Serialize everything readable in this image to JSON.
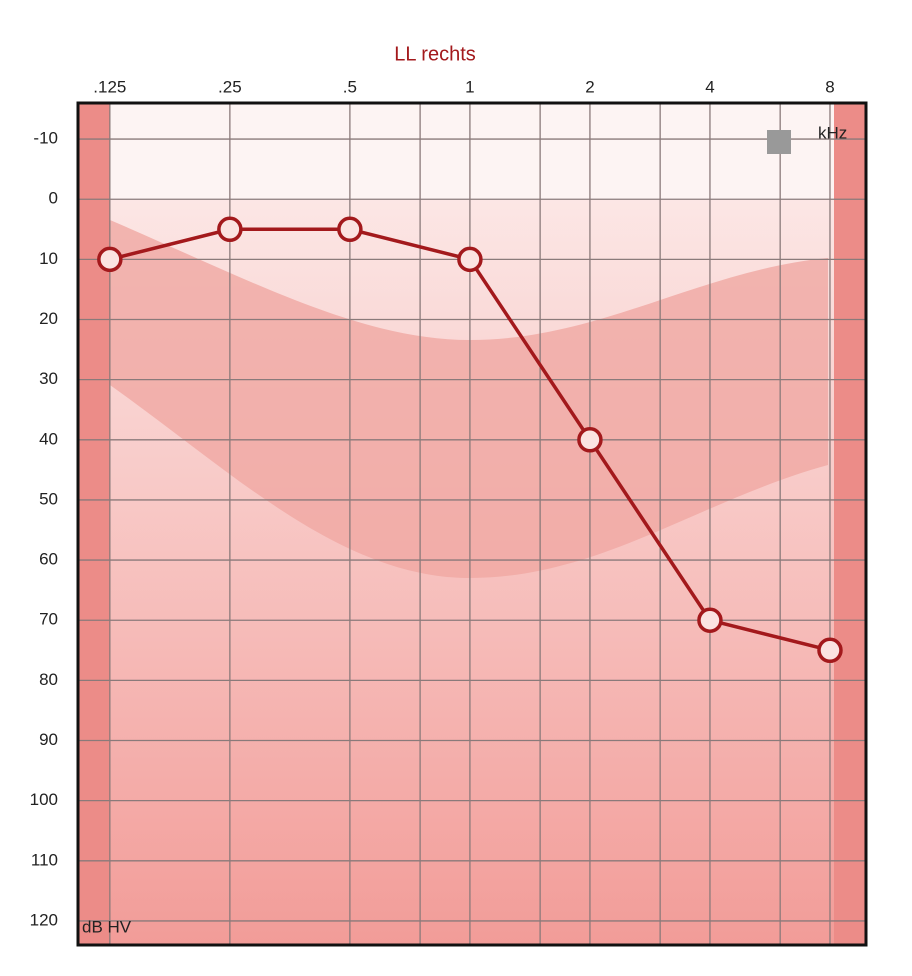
{
  "chart_data": {
    "type": "line",
    "title": "LL rechts",
    "xlabel": "kHz",
    "ylabel": "dB HV",
    "x": [
      0.125,
      0.25,
      0.5,
      1,
      2,
      4,
      8
    ],
    "series": [
      {
        "color": "#a3191c",
        "values": [
          10,
          5,
          5,
          10,
          40,
          70,
          75
        ]
      }
    ],
    "xlim": [
      0.104,
      9.85
    ],
    "xscale": "log",
    "xticks": [
      {
        "value": 0.125,
        "label": ".125"
      },
      {
        "value": 0.25,
        "label": ".25"
      },
      {
        "value": 0.5,
        "label": ".5"
      },
      1,
      2,
      4,
      8
    ],
    "xminor": [
      0.75,
      1.5,
      3,
      6
    ],
    "ylim": [
      -16,
      124
    ],
    "y_reversed": true,
    "yticks": [
      -10,
      0,
      10,
      20,
      30,
      40,
      50,
      60,
      70,
      80,
      90,
      100,
      110,
      120
    ],
    "grid": true
  }
}
